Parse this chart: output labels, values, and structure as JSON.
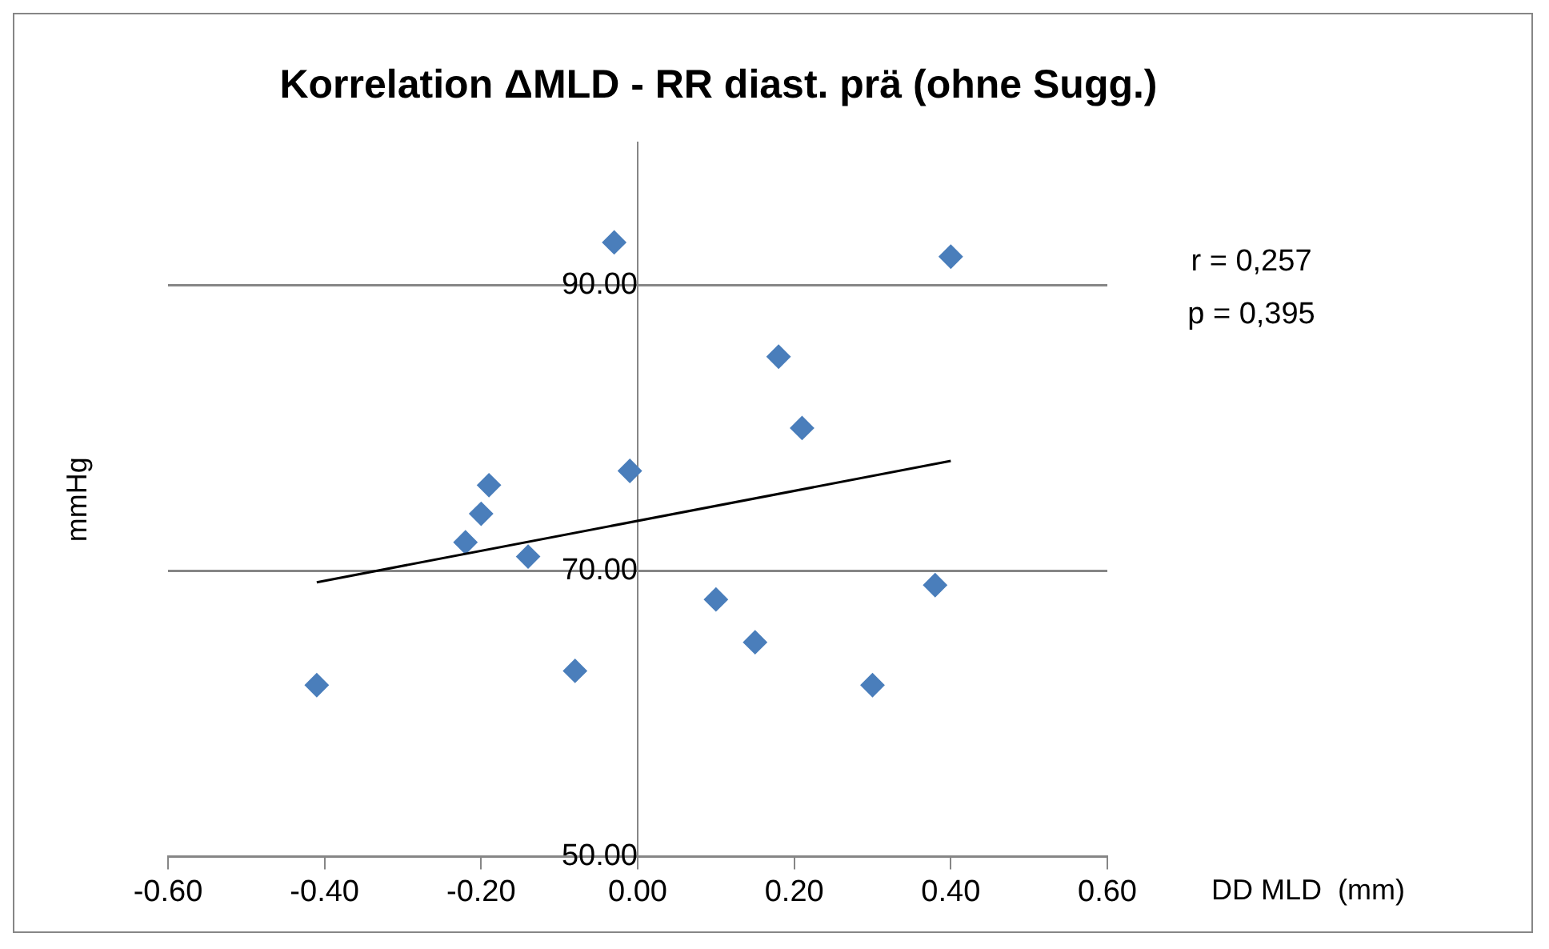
{
  "chart_data": {
    "type": "scatter",
    "title": "Korrelation ΔMLD - RR diast. prä (ohne Sugg.)",
    "xlabel": "DD MLD  (mm)",
    "ylabel": "mmHg",
    "x": [
      -0.41,
      -0.22,
      -0.2,
      -0.19,
      -0.14,
      -0.08,
      -0.03,
      -0.01,
      0.1,
      0.15,
      0.18,
      0.21,
      0.3,
      0.38,
      0.4
    ],
    "series": [
      {
        "color": "#4a7ebb",
        "values": [
          62,
          72,
          74,
          76,
          71,
          63,
          93,
          77,
          68,
          65,
          85,
          80,
          62,
          69,
          92
        ]
      },
      {
        "type": "line",
        "color": "#000000",
        "x": [
          -0.41,
          0.4
        ],
        "values": [
          69.2,
          77.7
        ],
        "marker": "none"
      }
    ],
    "xlim": [
      -0.6,
      0.6
    ],
    "xticks": [
      {
        "value": -0.6,
        "label": "-0.60"
      },
      {
        "value": -0.4,
        "label": "-0.40"
      },
      {
        "value": -0.2,
        "label": "-0.20"
      },
      {
        "value": 0,
        "label": "0.00"
      },
      {
        "value": 0.2,
        "label": "0.20"
      },
      {
        "value": 0.4,
        "label": "0.40"
      },
      {
        "value": 0.6,
        "label": "0.60"
      }
    ],
    "ylim": [
      50,
      100
    ],
    "yticks": [
      {
        "value": 50,
        "label": "50.00"
      },
      {
        "value": 70,
        "label": "70.00"
      },
      {
        "value": 90,
        "label": "90.00"
      }
    ],
    "grid": "y",
    "marker": "diamond",
    "legend": false,
    "annotations": [
      "r = 0,257",
      "p = 0,395"
    ]
  }
}
